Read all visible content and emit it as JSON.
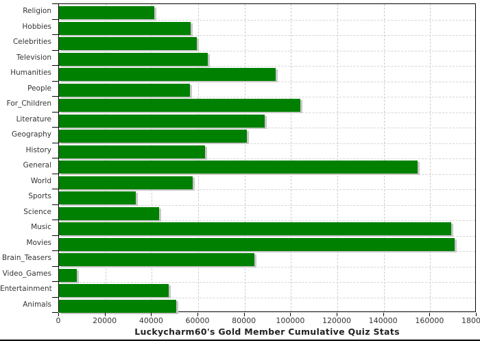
{
  "page": {
    "background": "#ffffff"
  },
  "chart_data": {
    "type": "bar",
    "orientation": "horizontal",
    "title": "Luckycharm60's Gold Member Cumulative Quiz Stats",
    "categories": [
      "Religion",
      "Hobbies",
      "Celebrities",
      "Television",
      "Humanities",
      "People",
      "For_Children",
      "Literature",
      "Geography",
      "History",
      "General",
      "World",
      "Sports",
      "Science",
      "Music",
      "Movies",
      "Brain_Teasers",
      "Video_Games",
      "Entertainment",
      "Animals"
    ],
    "values": [
      41000,
      56800,
      59500,
      64000,
      93500,
      56500,
      104000,
      88700,
      81000,
      63000,
      154600,
      57500,
      33000,
      43300,
      169000,
      170600,
      84300,
      7600,
      47400,
      50600
    ],
    "xlim": [
      0,
      180000
    ],
    "x_tick_interval": 20000,
    "x_tick_labels": [
      "0",
      "20000",
      "40000",
      "60000",
      "80000",
      "100000",
      "120000",
      "140000",
      "160000",
      "180000"
    ],
    "grid": "dashed",
    "legend_position": "none",
    "colors": {
      "bar": "#008000",
      "bar_shadow": "#c8c8c8",
      "grid": "#cccccc",
      "frame": "#000000",
      "text": "#333333",
      "title": "#222222",
      "bottom_rule": "#000000"
    }
  }
}
